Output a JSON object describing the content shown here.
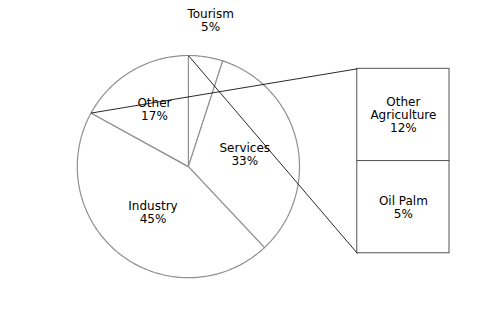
{
  "chart_data": {
    "type": "pie",
    "categories": [
      "Tourism",
      "Services",
      "Industry",
      "Other"
    ],
    "values": [
      5,
      33,
      45,
      17
    ],
    "value_labels": [
      "Tourism\n5%",
      "Services\n33%",
      "Industry\n45%",
      "Other\n17%"
    ],
    "color": "#ffffff",
    "data_labels": true,
    "breakdown": {
      "of": "Other",
      "categories": [
        "Other Agriculture",
        "Oil Palm"
      ],
      "values": [
        12,
        5
      ],
      "value_labels": [
        "Other\nAgriculture\n12%",
        "Oil Palm\n5%"
      ]
    }
  }
}
